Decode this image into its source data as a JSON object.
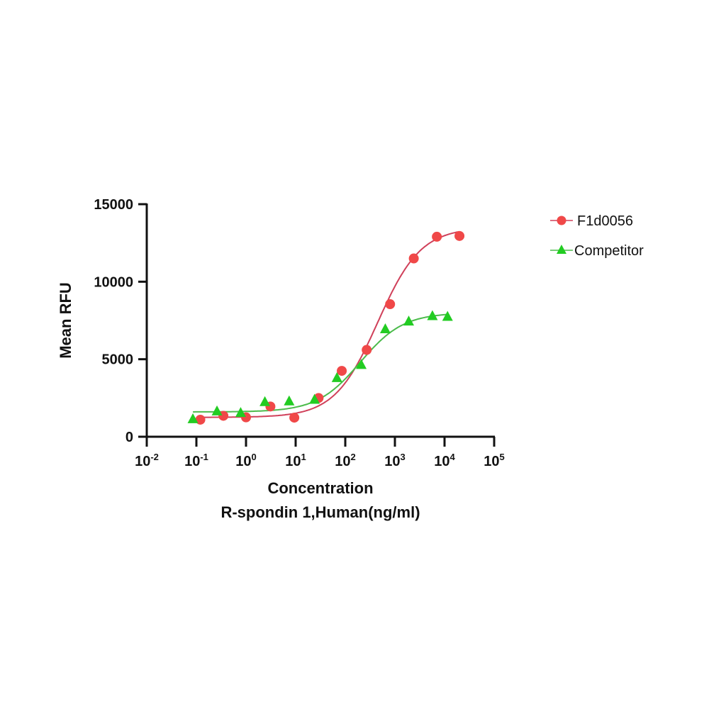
{
  "chart_data": {
    "type": "scatter",
    "title": "",
    "xlabel": "Concentration",
    "xlabel_line2": "R-spondin 1,Human(ng/ml)",
    "ylabel": "Mean RFU",
    "xscale": "log",
    "xlim": [
      0.01,
      100000
    ],
    "ylim": [
      0,
      15000
    ],
    "x_ticks": [
      {
        "base": "10",
        "exp": "-2",
        "value": 0.01
      },
      {
        "base": "10",
        "exp": "-1",
        "value": 0.1
      },
      {
        "base": "10",
        "exp": "0",
        "value": 1
      },
      {
        "base": "10",
        "exp": "1",
        "value": 10
      },
      {
        "base": "10",
        "exp": "2",
        "value": 100
      },
      {
        "base": "10",
        "exp": "3",
        "value": 1000
      },
      {
        "base": "10",
        "exp": "4",
        "value": 10000
      },
      {
        "base": "10",
        "exp": "5",
        "value": 100000
      }
    ],
    "y_ticks": [
      "0",
      "5000",
      "10000",
      "15000"
    ],
    "y_tick_values": [
      0,
      5000,
      10000,
      15000
    ],
    "grid": false,
    "legend_position": "right-top",
    "fit": "4PL sigmoid curves",
    "series": [
      {
        "name": "F1d0056",
        "marker": "circle",
        "color": "#f04848",
        "line_color": "#d0405a",
        "x": [
          0.12,
          0.35,
          1.0,
          3.1,
          9.4,
          29,
          85,
          270,
          800,
          2400,
          7000,
          20000
        ],
        "y": [
          1100,
          1350,
          1250,
          1950,
          1230,
          2500,
          4250,
          5600,
          8550,
          11500,
          12900,
          12950
        ]
      },
      {
        "name": "Competitor",
        "marker": "triangle",
        "color": "#22cc22",
        "line_color": "#4cbb4c",
        "x": [
          0.085,
          0.26,
          0.78,
          2.4,
          7.4,
          24,
          68,
          210,
          640,
          1900,
          5700,
          11500
        ],
        "y": [
          1150,
          1650,
          1550,
          2250,
          2300,
          2400,
          3800,
          4650,
          6950,
          7450,
          7800,
          7750
        ]
      }
    ],
    "fits": [
      {
        "name": "F1d0056",
        "bottom": 1250,
        "top": 13500,
        "ec50": 450,
        "hill": 1.0
      },
      {
        "name": "Competitor",
        "bottom": 1600,
        "top": 8000,
        "ec50": 200,
        "hill": 1.0
      }
    ]
  },
  "legend": {
    "items": [
      {
        "label": "F1d0056",
        "color": "#f04848",
        "marker": "circle"
      },
      {
        "label": "Competitor",
        "color": "#22cc22",
        "marker": "triangle"
      }
    ]
  }
}
